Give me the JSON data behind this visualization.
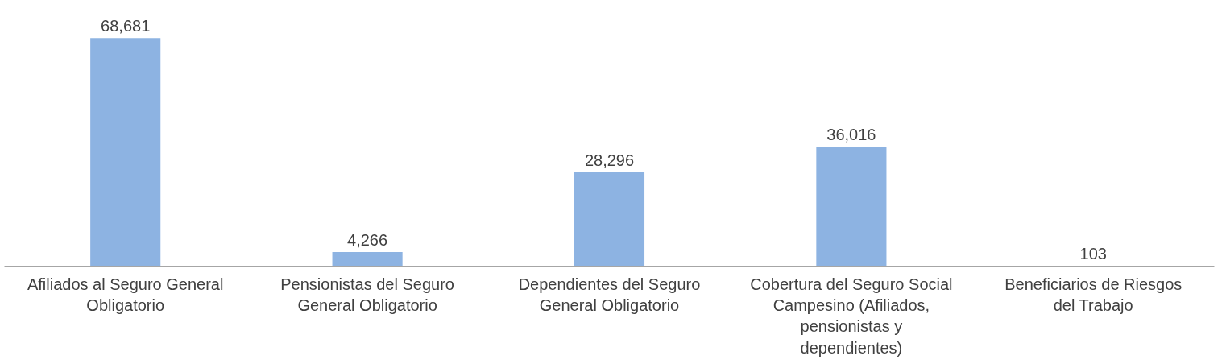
{
  "chart_data": {
    "type": "bar",
    "categories": [
      "Afiliados al Seguro General Obligatorio",
      "Pensionistas del Seguro General Obligatorio",
      "Dependientes del Seguro General Obligatorio",
      "Cobertura del Seguro Social Campesino (Afiliados, pensionistas y dependientes)",
      "Beneficiarios de Riesgos del Trabajo"
    ],
    "values": [
      68681,
      4266,
      28296,
      36016,
      103
    ],
    "value_labels": [
      "68,681",
      "4,266",
      "28,296",
      "36,016",
      "103"
    ],
    "color": "#8db3e2"
  }
}
